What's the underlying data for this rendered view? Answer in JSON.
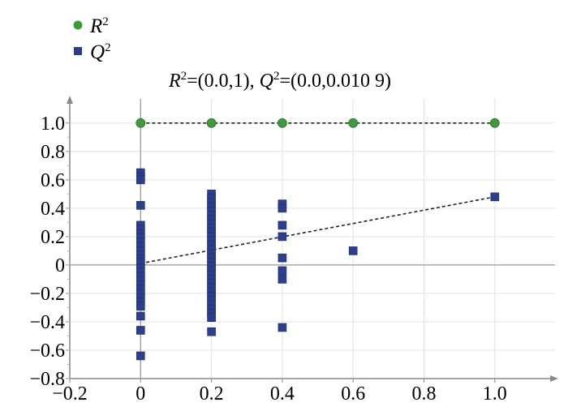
{
  "chart_data": {
    "type": "scatter",
    "title": "R²=(0.0,1), Q²=(0.0,0.010 9)",
    "title_parts": [
      {
        "text": "R",
        "italic": true,
        "sup": false
      },
      {
        "text": "2",
        "italic": false,
        "sup": true
      },
      {
        "text": "=(0.0,1), ",
        "italic": false,
        "sup": false
      },
      {
        "text": "Q",
        "italic": true,
        "sup": false
      },
      {
        "text": "2",
        "italic": false,
        "sup": true
      },
      {
        "text": "=(0.0,0.010 9)",
        "italic": false,
        "sup": false
      }
    ],
    "xlabel": "",
    "ylabel": "",
    "xlim": [
      -0.2,
      1.17
    ],
    "ylim": [
      -0.8,
      1.17
    ],
    "x_ticks": [
      "−0.2",
      "0",
      "0.2",
      "0.4",
      "0.6",
      "0.8",
      "1.0"
    ],
    "x_tick_values": [
      -0.2,
      0,
      0.2,
      0.4,
      0.6,
      0.8,
      1.0
    ],
    "y_ticks": [
      "1.0",
      "0.8",
      "0.6",
      "0.4",
      "0.2",
      "0",
      "−0.2",
      "−0.4",
      "−0.6",
      "−0.8"
    ],
    "y_tick_values": [
      1.0,
      0.8,
      0.6,
      0.4,
      0.2,
      0,
      -0.2,
      -0.4,
      -0.6,
      -0.8
    ],
    "grid": true,
    "legend_position": "top-left",
    "series": [
      {
        "name": "R²",
        "name_base": "R",
        "name_sup": "2",
        "marker": "circle",
        "color": "#3f9a3d",
        "points": [
          [
            0,
            1.0
          ],
          [
            0.2,
            1.0
          ],
          [
            0.4,
            1.0
          ],
          [
            0.6,
            1.0
          ],
          [
            1.0,
            1.0
          ]
        ]
      },
      {
        "name": "Q²",
        "name_base": "Q",
        "name_sup": "2",
        "marker": "square",
        "color": "#2c3e8c",
        "points": [
          [
            0,
            0.65
          ],
          [
            0,
            0.62
          ],
          [
            0,
            0.6
          ],
          [
            0,
            0.42
          ],
          [
            0,
            0.28
          ],
          [
            0,
            0.25
          ],
          [
            0,
            0.22
          ],
          [
            0,
            0.19
          ],
          [
            0,
            0.16
          ],
          [
            0,
            0.13
          ],
          [
            0,
            0.1
          ],
          [
            0,
            0.07
          ],
          [
            0,
            0.04
          ],
          [
            0,
            0.02
          ],
          [
            0,
            -0.02
          ],
          [
            0,
            -0.05
          ],
          [
            0,
            -0.08
          ],
          [
            0,
            -0.11
          ],
          [
            0,
            -0.14
          ],
          [
            0,
            -0.17
          ],
          [
            0,
            -0.2
          ],
          [
            0,
            -0.23
          ],
          [
            0,
            -0.26
          ],
          [
            0,
            -0.29
          ],
          [
            0,
            -0.36
          ],
          [
            0,
            -0.46
          ],
          [
            0,
            -0.64
          ],
          [
            0.2,
            0.5
          ],
          [
            0.2,
            0.47
          ],
          [
            0.2,
            0.44
          ],
          [
            0.2,
            0.41
          ],
          [
            0.2,
            0.38
          ],
          [
            0.2,
            0.35
          ],
          [
            0.2,
            0.32
          ],
          [
            0.2,
            0.29
          ],
          [
            0.2,
            0.26
          ],
          [
            0.2,
            0.23
          ],
          [
            0.2,
            0.2
          ],
          [
            0.2,
            0.17
          ],
          [
            0.2,
            0.14
          ],
          [
            0.2,
            0.11
          ],
          [
            0.2,
            0.08
          ],
          [
            0.2,
            0.05
          ],
          [
            0.2,
            0.02
          ],
          [
            0.2,
            -0.01
          ],
          [
            0.2,
            -0.04
          ],
          [
            0.2,
            -0.07
          ],
          [
            0.2,
            -0.1
          ],
          [
            0.2,
            -0.13
          ],
          [
            0.2,
            -0.16
          ],
          [
            0.2,
            -0.19
          ],
          [
            0.2,
            -0.22
          ],
          [
            0.2,
            -0.25
          ],
          [
            0.2,
            -0.28
          ],
          [
            0.2,
            -0.31
          ],
          [
            0.2,
            -0.34
          ],
          [
            0.2,
            -0.37
          ],
          [
            0.2,
            -0.47
          ],
          [
            0.4,
            0.43
          ],
          [
            0.4,
            0.4
          ],
          [
            0.4,
            0.28
          ],
          [
            0.4,
            0.2
          ],
          [
            0.4,
            0.05
          ],
          [
            0.4,
            -0.04
          ],
          [
            0.4,
            -0.1
          ],
          [
            0.4,
            -0.44
          ],
          [
            0.6,
            0.1
          ],
          [
            1.0,
            0.48
          ]
        ]
      }
    ],
    "reference_lines": [
      {
        "series": "R²",
        "from": [
          0,
          1.0
        ],
        "to": [
          1.0,
          1.0
        ],
        "style": "dashed"
      },
      {
        "series": "Q²",
        "from": [
          0,
          0.0109
        ],
        "to": [
          1.0,
          0.48
        ],
        "style": "dashed"
      }
    ]
  }
}
